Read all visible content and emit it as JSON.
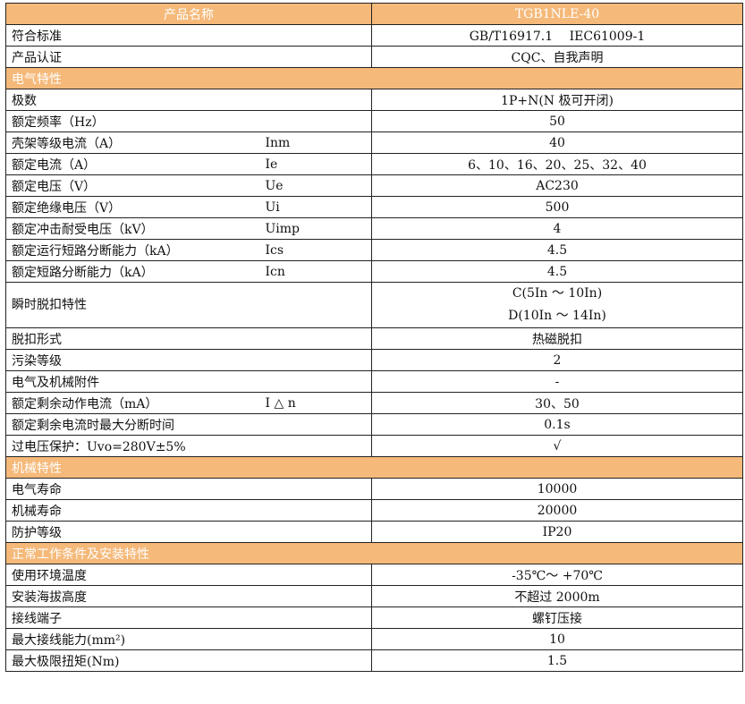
{
  "header": {
    "name_label": "产品名称",
    "model": "TGB1NLE-40"
  },
  "header_color": "#f5b97a",
  "rows_top": [
    {
      "label": "符合标准",
      "value": "GB/T16917.1　 IEC61009-1"
    },
    {
      "label": "产品认证",
      "value": "CQC、自我声明"
    }
  ],
  "sections": [
    {
      "title": "电气特性",
      "rows": [
        {
          "label": "极数",
          "symbol": "",
          "value": "1P+N(N 极可开闭)"
        },
        {
          "label": "额定频率（Hz）",
          "symbol": "",
          "value": "50"
        },
        {
          "label": "壳架等级电流（A）",
          "symbol": "Inm",
          "value": "40"
        },
        {
          "label": "额定电流（A）",
          "symbol": "Ie",
          "value": "6、10、16、20、25、32、40"
        },
        {
          "label": "额定电压（V）",
          "symbol": "Ue",
          "value": "AC230"
        },
        {
          "label": "额定绝缘电压（V）",
          "symbol": "Ui",
          "value": "500"
        },
        {
          "label": "额定冲击耐受电压（kV）",
          "symbol": "Uimp",
          "value": "4"
        },
        {
          "label": "额定运行短路分断能力（kA）",
          "symbol": "Ics",
          "value": "4.5"
        },
        {
          "label": "额定短路分断能力（kA）",
          "symbol": "Icn",
          "value": "4.5"
        },
        {
          "label": "瞬时脱扣特性",
          "symbol": "",
          "value": "C(5In ～ 10In)",
          "value2": "D(10In ～ 14In)"
        },
        {
          "label": "脱扣形式",
          "symbol": "",
          "value": "热磁脱扣"
        },
        {
          "label": "污染等级",
          "symbol": "",
          "value": "2"
        },
        {
          "label": "电气及机械附件",
          "symbol": "",
          "value": "-"
        },
        {
          "label": "额定剩余动作电流（mA）",
          "symbol": "I △ n",
          "value": "30、50"
        },
        {
          "label": "额定剩余电流时最大分断时间",
          "symbol": "",
          "value": "0.1s"
        },
        {
          "label": "过电压保护：Uvo=280V±5%",
          "symbol": "",
          "value": "√"
        }
      ]
    },
    {
      "title": "机械特性",
      "rows": [
        {
          "label": "电气寿命",
          "value": "10000"
        },
        {
          "label": "机械寿命",
          "value": "20000"
        },
        {
          "label": "防护等级",
          "value": "IP20"
        }
      ]
    },
    {
      "title": "正常工作条件及安装特性",
      "rows": [
        {
          "label": "使用环境温度",
          "value": "-35℃～ +70℃"
        },
        {
          "label": "安装海拔高度",
          "value": "不超过 2000m"
        },
        {
          "label": "接线端子",
          "value": "螺钉压接"
        },
        {
          "label": "最大接线能力(mm²)",
          "value": "10"
        },
        {
          "label": "最大极限扭矩(Nm)",
          "value": "1.5"
        }
      ]
    }
  ]
}
